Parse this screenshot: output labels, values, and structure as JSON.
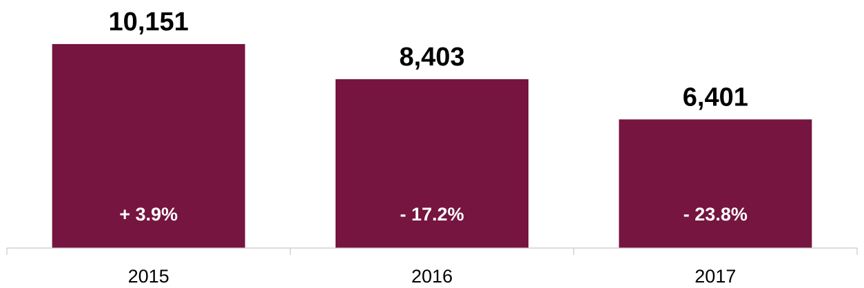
{
  "chart_data": {
    "type": "bar",
    "categories": [
      "2015",
      "2016",
      "2017"
    ],
    "values": [
      10151,
      8403,
      6401
    ],
    "value_labels": [
      "10,151",
      "8,403",
      "6,401"
    ],
    "change_labels": [
      "+ 3.9%",
      "- 17.2%",
      "- 23.8%"
    ],
    "title": "",
    "xlabel": "",
    "ylabel": "",
    "ylim": [
      0,
      12000
    ],
    "grid": false,
    "legend": "none",
    "colors": {
      "bar": "#751540",
      "axis": "#c8c8c8",
      "value_text": "#000000",
      "change_text": "#ffffff"
    }
  }
}
